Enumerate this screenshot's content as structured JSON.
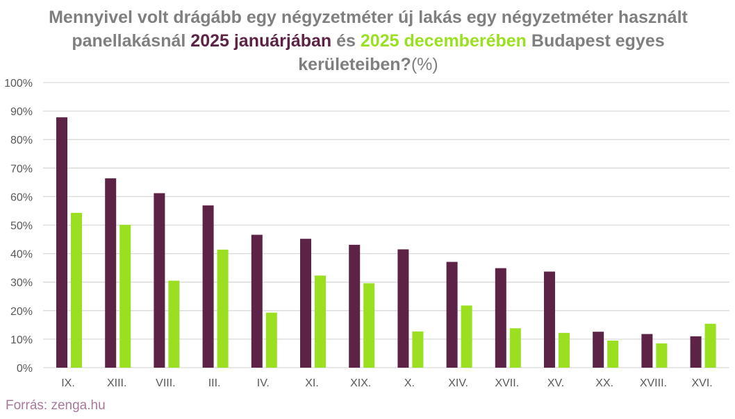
{
  "chart_data": {
    "type": "bar",
    "title": {
      "part1": "Mennyivel volt drágább egy négyzetméter új lakás egy négyzetméter használt panellakásnál",
      "series1_phrase": "2025 januárjában",
      "connector": "és",
      "series2_phrase": "2025 decemberében",
      "part2": "Budapest egyes kerületeiben?",
      "unit": "(%)"
    },
    "categories": [
      "IX.",
      "XIII.",
      "VIII.",
      "III.",
      "IV.",
      "XI.",
      "XIX.",
      "X.",
      "XIV.",
      "XVII.",
      "XV.",
      "XX.",
      "XVIII.",
      "XVI."
    ],
    "series": [
      {
        "values": [
          87.8,
          66.4,
          61.2,
          56.9,
          46.6,
          45.2,
          43.1,
          41.5,
          37.1,
          34.9,
          33.7,
          12.6,
          11.8,
          11.0
        ],
        "color": "#5c2346"
      },
      {
        "values": [
          54.3,
          50.1,
          30.5,
          41.4,
          19.3,
          32.3,
          29.6,
          12.7,
          21.8,
          13.8,
          12.2,
          9.5,
          8.5,
          15.4
        ],
        "color": "#9ae020"
      }
    ],
    "ylim": [
      0,
      100
    ],
    "yticks": [
      "0%",
      "10%",
      "20%",
      "30%",
      "40%",
      "50%",
      "60%",
      "70%",
      "80%",
      "90%",
      "100%"
    ],
    "grid": true,
    "legend": "none"
  },
  "source": "Forrás: zenga.hu"
}
